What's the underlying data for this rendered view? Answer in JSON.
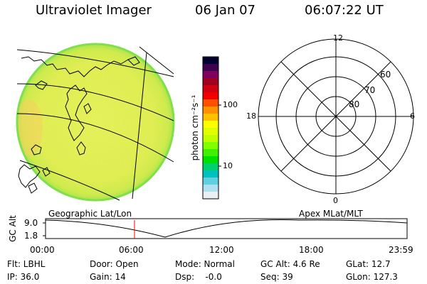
{
  "header": {
    "app_title": "Ultraviolet Imager",
    "date": "06 Jan 07",
    "time": "06:07:22 UT"
  },
  "colorbar": {
    "unit_label": "photon cm⁻²s⁻¹",
    "tick_labels": [
      "100",
      "10"
    ],
    "colors": [
      "#000030",
      "#400050",
      "#800060",
      "#a00020",
      "#d00010",
      "#f00000",
      "#ff5000",
      "#ff9000",
      "#ffc000",
      "#ffff00",
      "#e0ff00",
      "#c0ff00",
      "#80ff00",
      "#40f000",
      "#00e000",
      "#00d070",
      "#00c0c0",
      "#60d0e0",
      "#b0e0f0",
      "#e8f0f4"
    ]
  },
  "polar_plot": {
    "mlt_labels": {
      "top": "12",
      "left": "18",
      "right": "6",
      "bottom": "0"
    },
    "lat_labels": [
      "60",
      "70",
      "80"
    ]
  },
  "timeline": {
    "left_title": "Geographic Lat/Lon",
    "right_title": "Apex MLat/MLT",
    "axis_label": "GC Alt",
    "y_ticks": [
      "9.0",
      "1.8"
    ],
    "x_ticks": [
      "00:00",
      "06:00",
      "12:00",
      "18:00",
      "23:59"
    ],
    "cursor_color": "#ff0000"
  },
  "info": {
    "flt": "Flt: LBHL",
    "door": "Door: Open",
    "mode": "Mode: Normal",
    "gc_alt": "GC Alt: 4.6 Re",
    "glat": "GLat: 12.7",
    "ip": "IP: 36.0",
    "gain": "Gain: 14",
    "dsp": "Dsp:    -0.0",
    "seq": "Seq: 39",
    "glon": "GLon: 127.3"
  }
}
